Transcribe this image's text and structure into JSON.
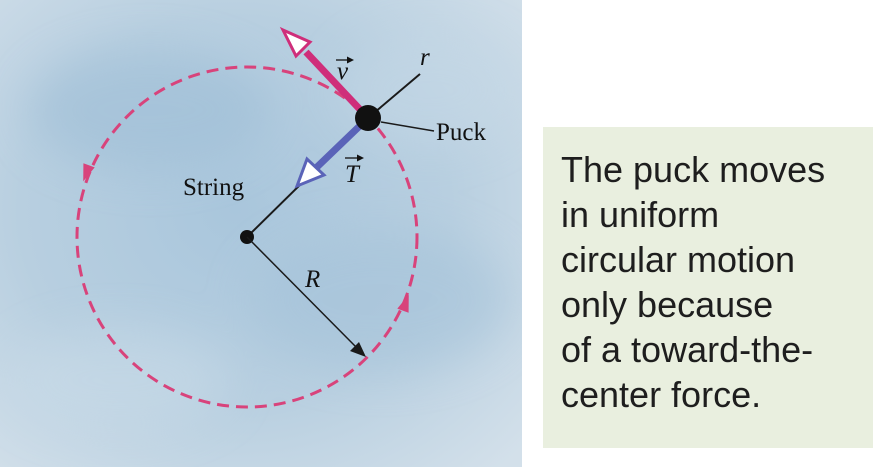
{
  "diagram": {
    "labels": {
      "velocity_symbol": "v",
      "radial_axis_symbol": "r",
      "puck_label": "Puck",
      "tension_symbol": "T",
      "string_label": "String",
      "radius_symbol": "R"
    },
    "colors": {
      "path": "#d8437b",
      "velocity_vector": "#cf2e7a",
      "tension_vector": "#5a63b8",
      "puck": "#111111",
      "background": "#b7cfe0"
    }
  },
  "caption": {
    "lines": [
      "The puck moves",
      "in uniform",
      "circular motion",
      "only because",
      "of a toward-the-",
      "center force."
    ]
  }
}
